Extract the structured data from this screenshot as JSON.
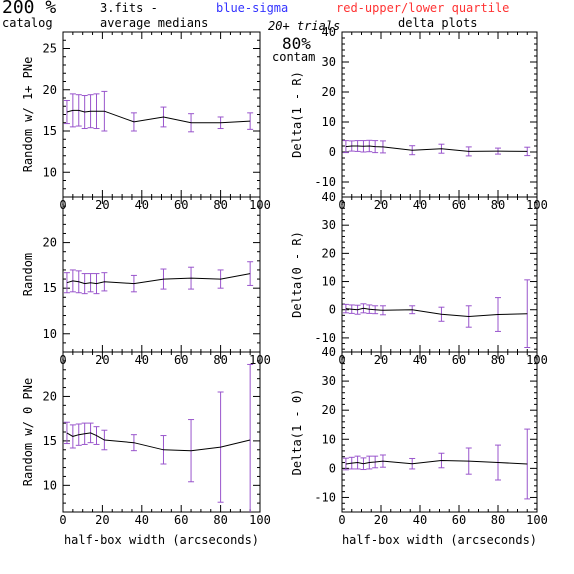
{
  "header": {
    "pct": "200 %",
    "catalog": "catalog",
    "file": "3.fits -",
    "avg": "average medians",
    "blue": "blue-sigma",
    "red": "red-upper/lower quartile",
    "trials": "20+ trials",
    "contam_pct": "80%",
    "contam": "contam",
    "delta": "delta plots"
  },
  "colors": {
    "blue": "#3333ff",
    "red": "#ff3333",
    "errbar": "#9955cc",
    "line": "#000000",
    "axis": "#000000"
  },
  "chart_data": [
    {
      "id": "left-top",
      "type": "line",
      "ylabel": "Random w/ 1+ PNe",
      "xlabel": "",
      "xlim": [
        0,
        100
      ],
      "ylim": [
        7,
        27
      ],
      "xticks": [
        0,
        20,
        40,
        60,
        80,
        100
      ],
      "yticks": [
        10,
        15,
        20,
        25
      ],
      "x": [
        2,
        5,
        8,
        11,
        14,
        17,
        21,
        36,
        51,
        65,
        80,
        95
      ],
      "y": [
        17.3,
        17.5,
        17.5,
        17.3,
        17.4,
        17.4,
        17.4,
        16.1,
        16.7,
        16.0,
        16.0,
        16.2
      ],
      "err": [
        1.4,
        2.0,
        1.9,
        2.0,
        2.0,
        2.1,
        2.4,
        1.1,
        1.2,
        1.1,
        0.7,
        1.0
      ]
    },
    {
      "id": "right-top",
      "type": "line",
      "ylabel": "Delta(1 - R)",
      "xlabel": "",
      "xlim": [
        0,
        100
      ],
      "ylim": [
        -15,
        40
      ],
      "xticks": [
        0,
        20,
        40,
        60,
        80,
        100
      ],
      "yticks": [
        -10,
        0,
        10,
        20,
        30,
        40
      ],
      "x": [
        2,
        5,
        8,
        11,
        14,
        17,
        21,
        36,
        51,
        65,
        80,
        95
      ],
      "y": [
        1.8,
        2.0,
        2.0,
        1.9,
        2.0,
        1.8,
        1.7,
        0.6,
        1.1,
        0.2,
        0.3,
        0.2
      ],
      "err": [
        2.0,
        1.7,
        1.8,
        1.9,
        1.9,
        2.0,
        2.0,
        1.5,
        1.5,
        1.5,
        1.0,
        1.4
      ]
    },
    {
      "id": "left-mid",
      "type": "line",
      "ylabel": "Random",
      "xlabel": "",
      "xlim": [
        0,
        100
      ],
      "ylim": [
        8,
        25
      ],
      "xticks": [
        0,
        20,
        40,
        60,
        80,
        100
      ],
      "yticks": [
        10,
        15,
        20
      ],
      "x": [
        2,
        5,
        8,
        11,
        14,
        17,
        21,
        36,
        51,
        65,
        80,
        95
      ],
      "y": [
        15.6,
        15.8,
        15.7,
        15.5,
        15.6,
        15.5,
        15.7,
        15.5,
        16.0,
        16.1,
        16.0,
        16.6
      ],
      "err": [
        1.1,
        1.2,
        1.2,
        1.1,
        1.0,
        1.1,
        1.0,
        0.9,
        1.1,
        1.2,
        1.0,
        1.3
      ]
    },
    {
      "id": "right-mid",
      "type": "line",
      "ylabel": "Delta(0 - R)",
      "xlabel": "",
      "xlim": [
        0,
        100
      ],
      "ylim": [
        -15,
        40
      ],
      "xticks": [
        0,
        20,
        40,
        60,
        80,
        100
      ],
      "yticks": [
        -10,
        0,
        10,
        20,
        30,
        40
      ],
      "x": [
        2,
        5,
        8,
        11,
        14,
        17,
        21,
        36,
        51,
        65,
        80,
        95
      ],
      "y": [
        0.4,
        0.2,
        0.0,
        0.5,
        0.2,
        0.0,
        -0.2,
        0.0,
        -1.6,
        -2.4,
        -1.7,
        -1.4
      ],
      "err": [
        1.5,
        1.5,
        1.6,
        1.6,
        1.5,
        1.4,
        1.6,
        1.4,
        2.5,
        3.8,
        6.0,
        12.0
      ]
    },
    {
      "id": "left-bot",
      "type": "line",
      "ylabel": "Random w/ 0 PNe",
      "xlabel": "half-box width (arcseconds)",
      "xlim": [
        0,
        100
      ],
      "ylim": [
        7,
        25
      ],
      "xticks": [
        0,
        20,
        40,
        60,
        80,
        100
      ],
      "yticks": [
        10,
        15,
        20
      ],
      "x": [
        2,
        5,
        8,
        11,
        14,
        17,
        21,
        36,
        51,
        65,
        80,
        95
      ],
      "y": [
        15.9,
        15.5,
        15.7,
        15.8,
        15.9,
        15.6,
        15.1,
        14.8,
        14.0,
        13.9,
        14.3,
        15.1
      ],
      "err": [
        1.2,
        1.3,
        1.2,
        1.2,
        1.1,
        1.0,
        1.1,
        0.9,
        1.6,
        3.5,
        6.2,
        8.5
      ]
    },
    {
      "id": "right-bot",
      "type": "line",
      "ylabel": "Delta(1 - 0)",
      "xlabel": "half-box width (arcseconds)",
      "xlim": [
        0,
        100
      ],
      "ylim": [
        -15,
        40
      ],
      "xticks": [
        0,
        20,
        40,
        60,
        80,
        100
      ],
      "yticks": [
        -10,
        0,
        10,
        20,
        30,
        40
      ],
      "x": [
        2,
        5,
        8,
        11,
        14,
        17,
        21,
        36,
        51,
        65,
        80,
        95
      ],
      "y": [
        1.5,
        1.8,
        2.0,
        1.6,
        2.0,
        2.2,
        2.5,
        1.6,
        2.7,
        2.5,
        2.0,
        1.5
      ],
      "err": [
        2.0,
        2.0,
        2.2,
        2.0,
        2.2,
        2.0,
        2.1,
        1.8,
        2.5,
        4.5,
        6.0,
        12.0
      ]
    }
  ]
}
